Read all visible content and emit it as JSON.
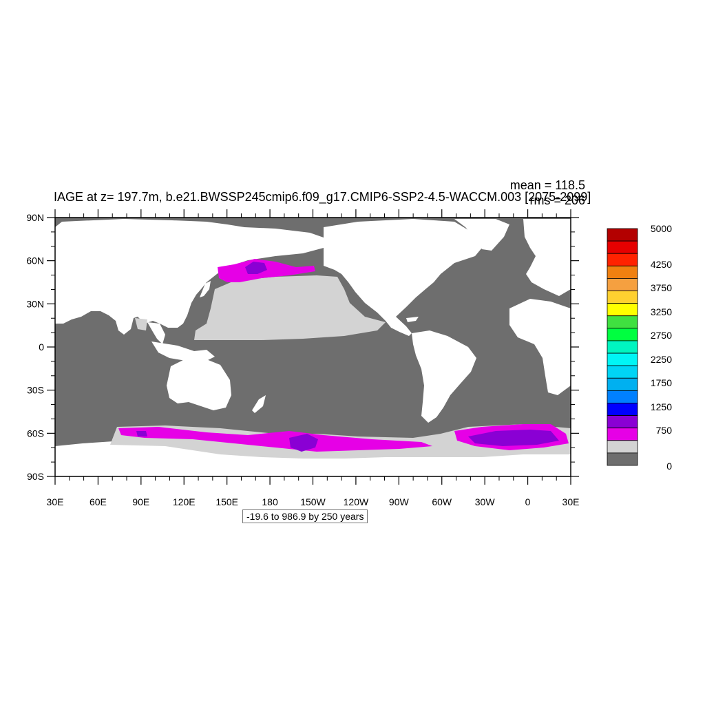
{
  "title": "IAGE at z= 197.7m, b.e21.BWSSP245cmip6.f09_g17.CMIP6-SSP2-4.5-WACCM.003 [2075-2099]",
  "stats": {
    "mean": "mean = 118.5",
    "rms": "rms = 206"
  },
  "footnote": "-19.6 to 986.9 by 250 years",
  "map": {
    "projection": "cylindrical equidistant",
    "lon_range": [
      30,
      390
    ],
    "lat_range": [
      -90,
      90
    ],
    "lat_ticks": [
      "90N",
      "60N",
      "30N",
      "0",
      "30S",
      "60S",
      "90S"
    ],
    "lon_ticks": [
      "30E",
      "60E",
      "90E",
      "120E",
      "150E",
      "180",
      "150W",
      "120W",
      "90W",
      "60W",
      "30W",
      "0",
      "30E"
    ],
    "land_color": "#ffffff",
    "ocean_color": "#6e6e6e"
  },
  "colorbar": {
    "labels": [
      "5000",
      "4250",
      "3750",
      "3250",
      "2750",
      "2250",
      "1750",
      "1250",
      "750",
      "0"
    ],
    "colors": [
      "#b30000",
      "#e60000",
      "#ff2200",
      "#f08010",
      "#f5a040",
      "#ffd030",
      "#ffff00",
      "#40e040",
      "#00ff40",
      "#00f5c0",
      "#00f5f5",
      "#00d4f5",
      "#00b0f0",
      "#0080ff",
      "#0000ff",
      "#8a00d4",
      "#e600e6",
      "#d3d3d3",
      "#6e6e6e"
    ]
  }
}
